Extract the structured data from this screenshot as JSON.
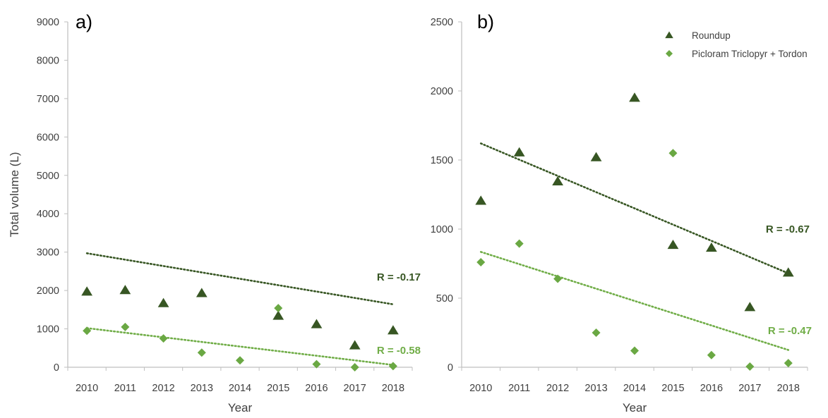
{
  "colors": {
    "roundup": "#375623",
    "picloram": "#6aa843",
    "roundup_trend": "#375623",
    "picloram_trend": "#70ad47",
    "axis": "#bfbfbf",
    "text": "#404040"
  },
  "chart_data": [
    {
      "panel_label": "a)",
      "type": "scatter",
      "categories": [
        "2010",
        "2011",
        "2012",
        "2013",
        "2014",
        "2015",
        "2016",
        "2017",
        "2018"
      ],
      "ylabel": "Total volume (L)",
      "xlabel": "Year",
      "ylim": [
        0,
        9000
      ],
      "yticks": [
        "0",
        "1000",
        "2000",
        "3000",
        "4000",
        "5000",
        "6000",
        "7000",
        "8000",
        "9000"
      ],
      "grid": false,
      "legend": "none",
      "series": [
        {
          "marker": "triangle",
          "values": [
            1970,
            2010,
            1670,
            1930,
            null,
            1340,
            1120,
            570,
            960
          ],
          "trendline": {
            "start": 2970,
            "end": 1640,
            "label": "R = -0.17"
          }
        },
        {
          "marker": "diamond",
          "values": [
            950,
            1050,
            750,
            380,
            180,
            1540,
            80,
            0,
            30
          ],
          "trendline": {
            "start": 1020,
            "end": 60,
            "label": "R = -0.58"
          }
        }
      ]
    },
    {
      "panel_label": "b)",
      "type": "scatter",
      "categories": [
        "2010",
        "2011",
        "2012",
        "2013",
        "2014",
        "2015",
        "2016",
        "2017",
        "2018"
      ],
      "ylabel": "",
      "xlabel": "Year",
      "ylim": [
        0,
        2500
      ],
      "yticks": [
        "0",
        "500",
        "1000",
        "1500",
        "2000",
        "2500"
      ],
      "grid": false,
      "legend": "top-right",
      "series": [
        {
          "name": "Roundup",
          "marker": "triangle",
          "values": [
            1205,
            1555,
            1345,
            1520,
            1950,
            885,
            865,
            435,
            685
          ],
          "trendline": {
            "start": 1620,
            "end": 680,
            "label": "R = -0.67"
          }
        },
        {
          "name": "Picloram Triclopyr + Tordon",
          "marker": "diamond",
          "values": [
            760,
            895,
            640,
            250,
            120,
            1550,
            88,
            5,
            30
          ],
          "trendline": {
            "start": 835,
            "end": 125,
            "label": "R = -0.47"
          }
        }
      ]
    }
  ]
}
